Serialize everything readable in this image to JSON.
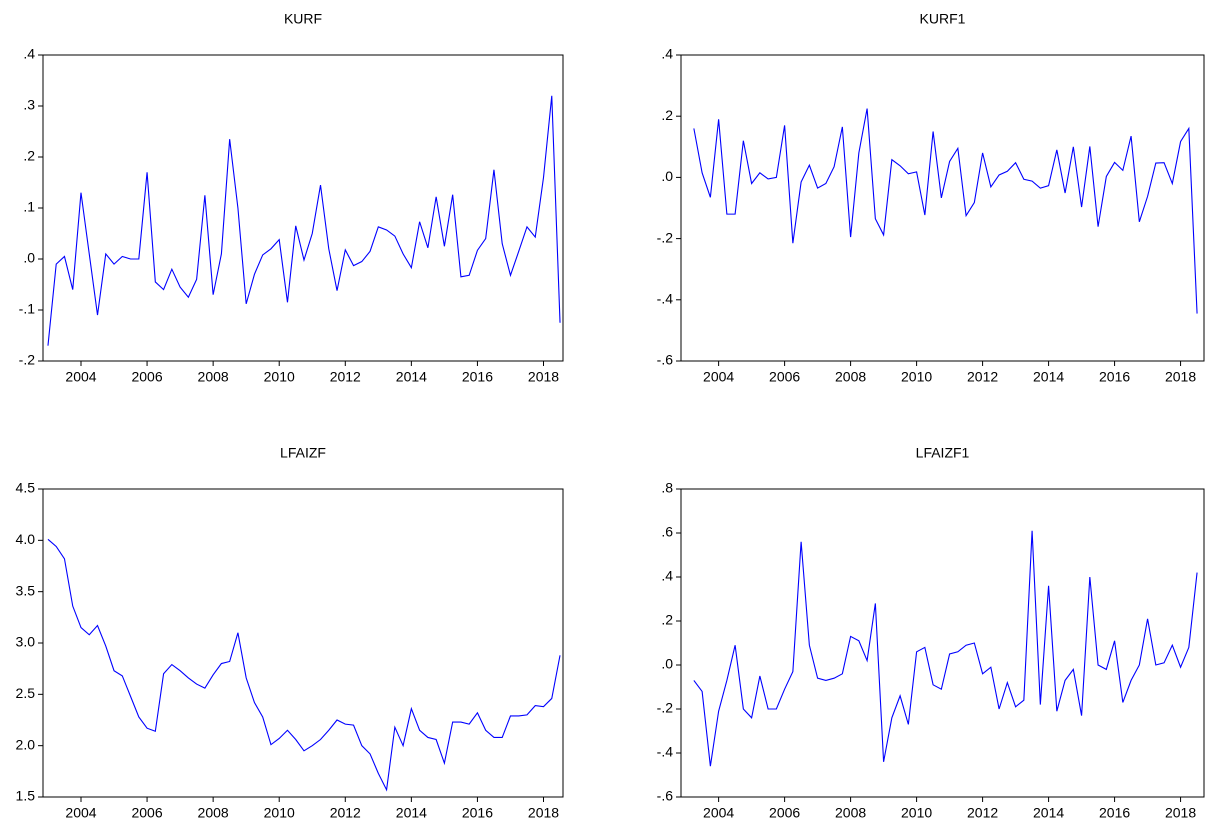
{
  "chart_data": [
    {
      "type": "line",
      "title": "KURF",
      "color": "#0000ff",
      "x": [
        2003,
        2003.25,
        2003.5,
        2003.75,
        2004,
        2004.25,
        2004.5,
        2004.75,
        2005,
        2005.25,
        2005.5,
        2005.75,
        2006,
        2006.25,
        2006.5,
        2006.75,
        2007,
        2007.25,
        2007.5,
        2007.75,
        2008,
        2008.25,
        2008.5,
        2008.75,
        2009,
        2009.25,
        2009.5,
        2009.75,
        2010,
        2010.25,
        2010.5,
        2010.75,
        2011,
        2011.25,
        2011.5,
        2011.75,
        2012,
        2012.25,
        2012.5,
        2012.75,
        2013,
        2013.25,
        2013.5,
        2013.75,
        2014,
        2014.25,
        2014.5,
        2014.75,
        2015,
        2015.25,
        2015.5,
        2015.75,
        2016,
        2016.25,
        2016.5,
        2016.75,
        2017,
        2017.25,
        2017.5,
        2017.75,
        2018,
        2018.25,
        2018.5
      ],
      "values": [
        -0.17,
        -0.01,
        0.005,
        -0.06,
        0.13,
        0.01,
        -0.11,
        0.01,
        -0.01,
        0.005,
        0,
        0,
        0.17,
        -0.045,
        -0.06,
        -0.02,
        -0.055,
        -0.075,
        -0.04,
        0.125,
        -0.07,
        0.01,
        0.235,
        0.1,
        -0.088,
        -0.03,
        0.008,
        0.02,
        0.038,
        -0.085,
        0.065,
        -0.002,
        0.05,
        0.145,
        0.02,
        -0.062,
        0.018,
        -0.013,
        -0.005,
        0.015,
        0.063,
        0.057,
        0.045,
        0.01,
        -0.017,
        0.073,
        0.022,
        0.122,
        0.025,
        0.126,
        -0.035,
        -0.032,
        0.017,
        0.04,
        0.175,
        0.03,
        -0.032,
        0.015,
        0.063,
        0.043,
        0.16,
        0.32,
        -0.125
      ],
      "xlim": [
        2002.85,
        2018.59
      ],
      "xticks": [
        2004,
        2006,
        2008,
        2010,
        2012,
        2014,
        2016,
        2018
      ],
      "ylim": [
        -0.2,
        0.4
      ],
      "yticks": [
        {
          "value": -0.2,
          "label": "-.2"
        },
        {
          "value": -0.1,
          "label": "-.1"
        },
        {
          "value": 0,
          "label": ".0"
        },
        {
          "value": 0.1,
          "label": ".1"
        },
        {
          "value": 0.2,
          "label": ".2"
        },
        {
          "value": 0.3,
          "label": ".3"
        },
        {
          "value": 0.4,
          "label": ".4"
        }
      ]
    },
    {
      "type": "line",
      "title": "KURF1",
      "color": "#0000ff",
      "x": [
        2003.25,
        2003.5,
        2003.75,
        2004,
        2004.25,
        2004.5,
        2004.75,
        2005,
        2005.25,
        2005.5,
        2005.75,
        2006,
        2006.25,
        2006.5,
        2006.75,
        2007,
        2007.25,
        2007.5,
        2007.75,
        2008,
        2008.25,
        2008.5,
        2008.75,
        2009,
        2009.25,
        2009.5,
        2009.75,
        2010,
        2010.25,
        2010.5,
        2010.75,
        2011,
        2011.25,
        2011.5,
        2011.75,
        2012,
        2012.25,
        2012.5,
        2012.75,
        2013,
        2013.25,
        2013.5,
        2013.75,
        2014,
        2014.25,
        2014.5,
        2014.75,
        2015,
        2015.25,
        2015.5,
        2015.75,
        2016,
        2016.25,
        2016.5,
        2016.75,
        2017,
        2017.25,
        2017.5,
        2017.75,
        2018,
        2018.25,
        2018.5
      ],
      "values": [
        0.16,
        0.015,
        -0.065,
        0.19,
        -0.12,
        -0.12,
        0.12,
        -0.02,
        0.015,
        -0.005,
        0,
        0.17,
        -0.215,
        -0.015,
        0.04,
        -0.035,
        -0.02,
        0.035,
        0.165,
        -0.195,
        0.08,
        0.225,
        -0.135,
        -0.188,
        0.058,
        0.038,
        0.012,
        0.018,
        -0.123,
        0.15,
        -0.067,
        0.052,
        0.095,
        -0.125,
        -0.082,
        0.08,
        -0.031,
        0.008,
        0.02,
        0.048,
        -0.006,
        -0.012,
        -0.035,
        -0.027,
        0.09,
        -0.051,
        0.1,
        -0.097,
        0.101,
        -0.161,
        0.003,
        0.049,
        0.023,
        0.135,
        -0.145,
        -0.062,
        0.047,
        0.048,
        -0.02,
        0.117,
        0.16,
        -0.445
      ],
      "xlim": [
        2002.86,
        2018.71
      ],
      "xticks": [
        2004,
        2006,
        2008,
        2010,
        2012,
        2014,
        2016,
        2018
      ],
      "ylim": [
        -0.6,
        0.4
      ],
      "yticks": [
        {
          "value": -0.6,
          "label": "-.6"
        },
        {
          "value": -0.4,
          "label": "-.4"
        },
        {
          "value": -0.2,
          "label": "-.2"
        },
        {
          "value": 0,
          "label": ".0"
        },
        {
          "value": 0.2,
          "label": ".2"
        },
        {
          "value": 0.4,
          "label": ".4"
        }
      ]
    },
    {
      "type": "line",
      "title": "LFAIZF",
      "color": "#0000ff",
      "x": [
        2003,
        2003.25,
        2003.5,
        2003.75,
        2004,
        2004.25,
        2004.5,
        2004.75,
        2005,
        2005.25,
        2005.5,
        2005.75,
        2006,
        2006.25,
        2006.5,
        2006.75,
        2007,
        2007.25,
        2007.5,
        2007.75,
        2008,
        2008.25,
        2008.5,
        2008.75,
        2009,
        2009.25,
        2009.5,
        2009.75,
        2010,
        2010.25,
        2010.5,
        2010.75,
        2011,
        2011.25,
        2011.5,
        2011.75,
        2012,
        2012.25,
        2012.5,
        2012.75,
        2013,
        2013.25,
        2013.5,
        2013.75,
        2014,
        2014.25,
        2014.5,
        2014.75,
        2015,
        2015.25,
        2015.5,
        2015.75,
        2016,
        2016.25,
        2016.5,
        2016.75,
        2017,
        2017.25,
        2017.5,
        2017.75,
        2018,
        2018.25,
        2018.5
      ],
      "values": [
        4.01,
        3.94,
        3.82,
        3.36,
        3.15,
        3.08,
        3.17,
        2.97,
        2.73,
        2.68,
        2.48,
        2.28,
        2.17,
        2.14,
        2.7,
        2.79,
        2.73,
        2.66,
        2.6,
        2.56,
        2.69,
        2.8,
        2.82,
        3.1,
        2.66,
        2.42,
        2.28,
        2.01,
        2.07,
        2.15,
        2.06,
        1.95,
        2.0,
        2.06,
        2.15,
        2.25,
        2.21,
        2.2,
        2.0,
        1.92,
        1.73,
        1.57,
        2.18,
        2.0,
        2.36,
        2.15,
        2.08,
        2.06,
        1.83,
        2.23,
        2.23,
        2.21,
        2.32,
        2.15,
        2.08,
        2.08,
        2.29,
        2.29,
        2.3,
        2.39,
        2.38,
        2.46,
        2.88
      ],
      "xlim": [
        2002.85,
        2018.59
      ],
      "xticks": [
        2004,
        2006,
        2008,
        2010,
        2012,
        2014,
        2016,
        2018
      ],
      "ylim": [
        1.5,
        4.5
      ],
      "yticks": [
        1.5,
        {
          "value": 2,
          "label": "2.0"
        },
        2.5,
        {
          "value": 3,
          "label": "3.0"
        },
        3.5,
        {
          "value": 4,
          "label": "4.0"
        },
        4.5
      ]
    },
    {
      "type": "line",
      "title": "LFAIZF1",
      "color": "#0000ff",
      "x": [
        2003.25,
        2003.5,
        2003.75,
        2004,
        2004.25,
        2004.5,
        2004.75,
        2005,
        2005.25,
        2005.5,
        2005.75,
        2006,
        2006.25,
        2006.5,
        2006.75,
        2007,
        2007.25,
        2007.5,
        2007.75,
        2008,
        2008.25,
        2008.5,
        2008.75,
        2009,
        2009.25,
        2009.5,
        2009.75,
        2010,
        2010.25,
        2010.5,
        2010.75,
        2011,
        2011.25,
        2011.5,
        2011.75,
        2012,
        2012.25,
        2012.5,
        2012.75,
        2013,
        2013.25,
        2013.5,
        2013.75,
        2014,
        2014.25,
        2014.5,
        2014.75,
        2015,
        2015.25,
        2015.5,
        2015.75,
        2016,
        2016.25,
        2016.5,
        2016.75,
        2017,
        2017.25,
        2017.5,
        2017.75,
        2018,
        2018.25,
        2018.5
      ],
      "values": [
        -0.07,
        -0.12,
        -0.46,
        -0.21,
        -0.07,
        0.09,
        -0.2,
        -0.24,
        -0.05,
        -0.2,
        -0.2,
        -0.11,
        -0.03,
        0.56,
        0.09,
        -0.06,
        -0.07,
        -0.06,
        -0.04,
        0.13,
        0.11,
        0.02,
        0.28,
        -0.44,
        -0.24,
        -0.14,
        -0.27,
        0.06,
        0.08,
        -0.09,
        -0.11,
        0.05,
        0.06,
        0.09,
        0.1,
        -0.04,
        -0.01,
        -0.2,
        -0.08,
        -0.19,
        -0.16,
        0.61,
        -0.18,
        0.36,
        -0.21,
        -0.07,
        -0.02,
        -0.23,
        0.4,
        0,
        -0.02,
        0.11,
        -0.17,
        -0.07,
        0,
        0.21,
        0,
        0.01,
        0.09,
        -0.01,
        0.08,
        0.42
      ],
      "xlim": [
        2002.86,
        2018.71
      ],
      "xticks": [
        2004,
        2006,
        2008,
        2010,
        2012,
        2014,
        2016,
        2018
      ],
      "ylim": [
        -0.6,
        0.8
      ],
      "yticks": [
        {
          "value": -0.6,
          "label": "-.6"
        },
        {
          "value": -0.4,
          "label": "-.4"
        },
        {
          "value": -0.2,
          "label": "-.2"
        },
        {
          "value": 0,
          "label": ".0"
        },
        {
          "value": 0.2,
          "label": ".2"
        },
        {
          "value": 0.4,
          "label": ".4"
        },
        {
          "value": 0.6,
          "label": ".6"
        },
        {
          "value": 0.8,
          "label": ".8"
        }
      ]
    }
  ]
}
